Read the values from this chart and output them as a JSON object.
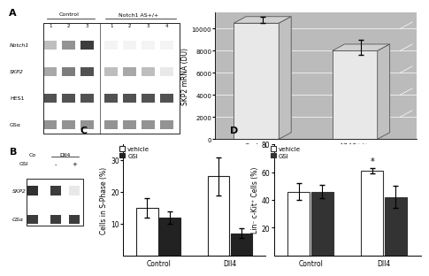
{
  "panel_A_bar": {
    "categories": [
      "Control",
      "N1AS+/+"
    ],
    "values": [
      10500,
      8000
    ],
    "errors": [
      300,
      700
    ],
    "ylabel": "SKP2 mRNA (DU)",
    "yticks": [
      0,
      2000,
      4000,
      6000,
      8000,
      10000
    ],
    "ylim": [
      0,
      11500
    ],
    "bar_color": "#e8e8e8",
    "bar_edge": "#555555",
    "bg_color": "#bbbbbb",
    "grid_color": "#888888"
  },
  "panel_A_wb": {
    "labels": [
      "Notch1",
      "SKP2",
      "HES1",
      "GSα"
    ],
    "group1_label": "Control",
    "group2_label": "Notch1 AS+/+",
    "nums1": [
      "1",
      "2",
      "3"
    ],
    "nums2": [
      "1",
      "2",
      "3",
      "4"
    ]
  },
  "panel_B_wb": {
    "col1": "Co",
    "col2": "Dll4",
    "row_gsi": "GSI",
    "minus": "-",
    "plus": "+",
    "rows": [
      "SKP2",
      "GSα"
    ]
  },
  "panel_C": {
    "groups": [
      "Control",
      "Dll4"
    ],
    "vehicle_values": [
      15,
      25
    ],
    "gsi_values": [
      12,
      7
    ],
    "vehicle_errors": [
      3,
      6
    ],
    "gsi_errors": [
      2,
      1.5
    ],
    "ylabel": "Cells in S-Phase (%)",
    "ylim": [
      0,
      35
    ],
    "yticks": [
      10,
      20,
      30
    ],
    "vehicle_color": "#ffffff",
    "gsi_color": "#222222",
    "bar_edge": "#222222"
  },
  "panel_D": {
    "groups": [
      "Control",
      "Dll4"
    ],
    "vehicle_values": [
      46,
      61
    ],
    "gsi_values": [
      46,
      42
    ],
    "vehicle_errors": [
      6,
      2
    ],
    "gsi_errors": [
      5,
      8
    ],
    "ylabel": "Lin⁻ c-Kit⁺ Cells (%)",
    "ylim": [
      0,
      80
    ],
    "yticks": [
      20,
      40,
      60,
      80
    ],
    "vehicle_color": "#ffffff",
    "gsi_color": "#333333",
    "bar_edge": "#333333"
  }
}
